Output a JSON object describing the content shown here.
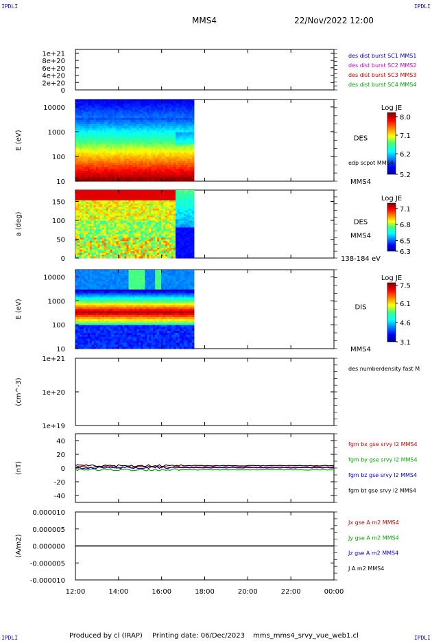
{
  "header": {
    "corner_label": "IPDLI",
    "spacecraft": "MMS4",
    "datetime": "22/Nov/2022 12:00"
  },
  "footer": {
    "produced_by": "Produced by cl (IRAP)",
    "printing_date": "Printing date: 06/Dec/2023",
    "filename": "mms_mms4_srvy_vue_web1.cl"
  },
  "time_axis": {
    "ticks": [
      "12:00",
      "14:00",
      "16:00",
      "18:00",
      "20:00",
      "22:00",
      "00:00"
    ],
    "start_hour": 12,
    "end_hour": 24,
    "data_end_hour": 17.5
  },
  "colors": {
    "red": "#cc0000",
    "green": "#00aa00",
    "blue": "#0000cc",
    "magenta": "#cc00cc",
    "black": "#000000"
  },
  "chart_data": [
    {
      "id": "panel1",
      "type": "line",
      "ylabel": "",
      "yticks": [
        "1e+21",
        "8e+20",
        "6e+20",
        "4e+20",
        "2e+20",
        "0"
      ],
      "ylim": [
        0,
        1.1e+21
      ],
      "series": [
        {
          "name": "des dist burst SC1 MMS1",
          "color": "#0000cc",
          "values": []
        },
        {
          "name": "des dist burst SC2 MMS2",
          "color": "#cc00cc",
          "values": []
        },
        {
          "name": "des dist burst SC3 MMS3",
          "color": "#cc0000",
          "values": []
        },
        {
          "name": "des dist burst SC4 MMS4",
          "color": "#00aa00",
          "values": []
        }
      ],
      "zero_line": "dashed"
    },
    {
      "id": "panel2",
      "type": "heatmap",
      "ylabel": "E (eV)",
      "yscale": "log",
      "ylim": [
        10,
        20000
      ],
      "yticks": [
        "10000",
        "1000",
        "100",
        "10"
      ],
      "instrument": "DES",
      "overlay_label": "edp scpot MMS4",
      "bottom_label": "MMS4",
      "colorbar": {
        "title": "Log JE",
        "min": 5.2,
        "max": 8.2,
        "ticks": [
          "8.0",
          "7.1",
          "6.2",
          "5.2"
        ]
      },
      "profile": "des_energy"
    },
    {
      "id": "panel3",
      "type": "heatmap",
      "ylabel": "a (deg)",
      "ylim": [
        0,
        180
      ],
      "yticks": [
        "150",
        "100",
        "50",
        "0"
      ],
      "instrument": "DES",
      "spacecraft_label": "MMS4",
      "bottom_label": "138-184 eV",
      "colorbar": {
        "title": "Log JE",
        "min": 6.3,
        "max": 7.2,
        "ticks": [
          "7.1",
          "6.8",
          "6.5",
          "6.3"
        ]
      },
      "profile": "des_pitch"
    },
    {
      "id": "panel4",
      "type": "heatmap",
      "ylabel": "E (eV)",
      "yscale": "log",
      "ylim": [
        10,
        20000
      ],
      "yticks": [
        "10000",
        "1000",
        "100",
        "10"
      ],
      "instrument": "DIS",
      "bottom_label": "MMS4",
      "colorbar": {
        "title": "Log JE",
        "min": 3.1,
        "max": 7.7,
        "ticks": [
          "7.5",
          "6.1",
          "4.6",
          "3.1"
        ]
      },
      "profile": "dis_energy"
    },
    {
      "id": "panel5",
      "type": "line",
      "ylabel": "(cm^-3)",
      "yscale": "log",
      "ylim": [
        1e+19,
        1e+21
      ],
      "yticks": [
        "1e+21",
        "1e+20",
        "1e+19"
      ],
      "series": [
        {
          "name": "des numberdensity fast M",
          "color": "#000000",
          "values": []
        }
      ]
    },
    {
      "id": "panel6",
      "type": "line",
      "ylabel": "(nT)",
      "ylim": [
        -50,
        50
      ],
      "yticks": [
        "40",
        "20",
        "0",
        "-20",
        "-40"
      ],
      "series": [
        {
          "name": "fgm bx gse srvy l2 MMS4",
          "color": "#cc0000",
          "level": 1.5
        },
        {
          "name": "fgm by gse srvy l2 MMS4",
          "color": "#00aa00",
          "level": -2.5
        },
        {
          "name": "fgm bz gse srvy l2 MMS4",
          "color": "#0000cc",
          "level": 0.5
        },
        {
          "name": "fgm bt gse srvy l2 MMS4",
          "color": "#000000",
          "level": 3.5
        }
      ]
    },
    {
      "id": "panel7",
      "type": "line",
      "ylabel": "(A/m2)",
      "ylim": [
        -1e-05,
        1e-05
      ],
      "yticks": [
        "0.000010",
        "0.000005",
        "0.000000",
        "-0.000005",
        "-0.000010"
      ],
      "series": [
        {
          "name": "Jx gse A m2 MMS4",
          "color": "#cc0000",
          "level": 0
        },
        {
          "name": "Jy gse A m2 MMS4",
          "color": "#00aa00",
          "level": 0
        },
        {
          "name": "Jz gse A m2 MMS4",
          "color": "#0000cc",
          "level": 0
        },
        {
          "name": "J A m2 MMS4",
          "color": "#000000",
          "level": 0
        }
      ]
    }
  ]
}
